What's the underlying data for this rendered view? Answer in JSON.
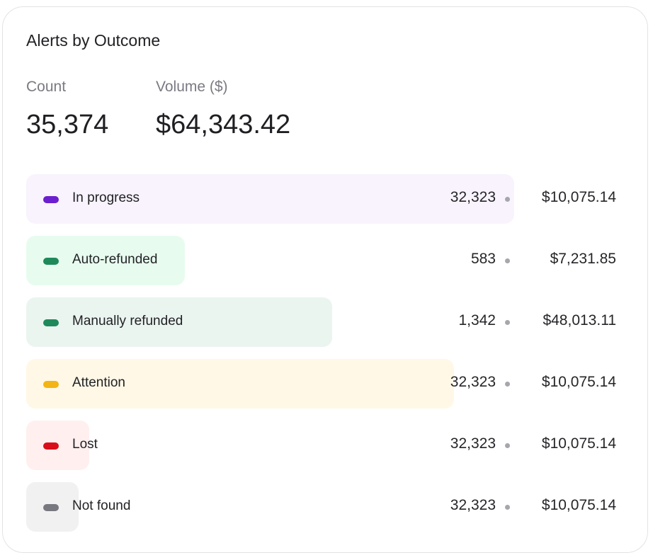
{
  "card": {
    "title": "Alerts by Outcome"
  },
  "metrics": {
    "count": {
      "label": "Count",
      "value": "35,374"
    },
    "volume": {
      "label": "Volume ($)",
      "value": "$64,343.42"
    }
  },
  "colors": {
    "in_progress": {
      "dot": "#6b1fcf",
      "bar": "#f8f3fd"
    },
    "auto_refunded": {
      "dot": "#1e8a5a",
      "bar": "#e7fcef"
    },
    "manually_refunded": {
      "dot": "#1e8a5a",
      "bar": "#ebf5f0"
    },
    "attention": {
      "dot": "#f2b515",
      "bar": "#fff8e6"
    },
    "lost": {
      "dot": "#d80f1b",
      "bar": "#fff0ef"
    },
    "not_found": {
      "dot": "#787880",
      "bar": "#f1f1f2"
    }
  },
  "chart_data": {
    "type": "bar",
    "orientation": "horizontal",
    "title": "Alerts by Outcome",
    "categories": [
      "In progress",
      "Auto-refunded",
      "Manually refunded",
      "Attention",
      "Lost",
      "Not found"
    ],
    "series": [
      {
        "name": "Count",
        "values": [
          32323,
          583,
          1342,
          32323,
          32323,
          32323
        ],
        "labels": [
          "32,323",
          "583",
          "1,342",
          "32,323",
          "32,323",
          "32,323"
        ]
      },
      {
        "name": "Volume ($)",
        "values": [
          10075.14,
          7231.85,
          48013.11,
          10075.14,
          10075.14,
          10075.14
        ],
        "labels": [
          "$10,075.14",
          "$7,231.85",
          "$48,013.11",
          "$10,075.14",
          "$10,075.14",
          "$10,075.14"
        ]
      }
    ],
    "bar_fill_fraction": [
      1.0,
      0.325,
      0.627,
      0.877,
      0.129,
      0.107
    ],
    "grid": false
  }
}
